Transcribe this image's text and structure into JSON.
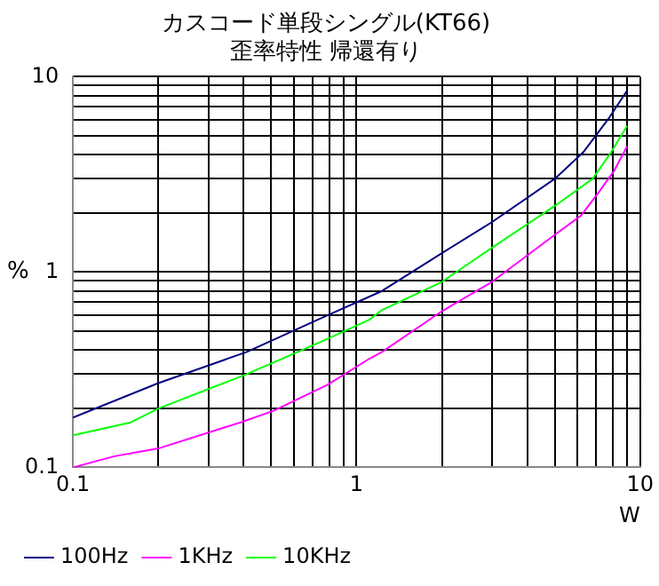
{
  "chart_data": {
    "type": "line",
    "title": "カスコード単段シングル(KT66)\n歪率特性 帰還有り",
    "xlabel": "W",
    "ylabel": "%",
    "log": "xy",
    "grid": true,
    "legend": "bottom",
    "marker": "none",
    "line_style": "solid",
    "xlim": [
      0.1,
      10
    ],
    "ylim": [
      0.1,
      10
    ],
    "xticks": [
      0.1,
      {
        "value": 0.2,
        "label": null
      },
      {
        "value": 0.3,
        "label": null
      },
      {
        "value": 0.4,
        "label": null
      },
      {
        "value": 0.5,
        "label": null
      },
      {
        "value": 0.6,
        "label": null
      },
      {
        "value": 0.7,
        "label": null
      },
      {
        "value": 0.8,
        "label": null
      },
      {
        "value": 0.9,
        "label": null
      },
      1,
      {
        "value": 2,
        "label": null
      },
      {
        "value": 3,
        "label": null
      },
      {
        "value": 4,
        "label": null
      },
      {
        "value": 5,
        "label": null
      },
      {
        "value": 6,
        "label": null
      },
      {
        "value": 7,
        "label": null
      },
      {
        "value": 8,
        "label": null
      },
      {
        "value": 9,
        "label": null
      },
      10
    ],
    "yticks": [
      0.1,
      {
        "value": 0.2,
        "label": null
      },
      {
        "value": 0.3,
        "label": null
      },
      {
        "value": 0.4,
        "label": null
      },
      {
        "value": 0.5,
        "label": null
      },
      {
        "value": 0.6,
        "label": null
      },
      {
        "value": 0.7,
        "label": null
      },
      {
        "value": 0.8,
        "label": null
      },
      {
        "value": 0.9,
        "label": null
      },
      1,
      {
        "value": 2,
        "label": null
      },
      {
        "value": 3,
        "label": null
      },
      {
        "value": 4,
        "label": null
      },
      {
        "value": 5,
        "label": null
      },
      {
        "value": 6,
        "label": null
      },
      {
        "value": 7,
        "label": null
      },
      {
        "value": 8,
        "label": null
      },
      {
        "value": 9,
        "label": null
      },
      10
    ],
    "series": [
      {
        "name": "100Hz",
        "color": "#000080",
        "x": [
          0.1,
          0.2,
          0.41,
          0.79,
          1.23,
          2.0,
          3.0,
          5.0,
          6.3,
          7.8,
          9.0
        ],
        "values": [
          0.18,
          0.27,
          0.39,
          0.6,
          0.8,
          1.25,
          1.8,
          3.0,
          4.1,
          6.2,
          8.5
        ]
      },
      {
        "name": "1KHz",
        "color": "#ff00ff",
        "x": [
          0.1,
          0.14,
          0.2,
          0.39,
          0.51,
          0.79,
          1.11,
          1.23,
          2.0,
          3.0,
          5.0,
          6.2,
          7.2,
          8.1,
          9.0
        ],
        "values": [
          0.1,
          0.114,
          0.125,
          0.17,
          0.195,
          0.265,
          0.36,
          0.39,
          0.63,
          0.89,
          1.55,
          1.95,
          2.6,
          3.3,
          4.4
        ]
      },
      {
        "name": "10KHz",
        "color": "#00ff00",
        "x": [
          0.1,
          0.16,
          0.2,
          0.41,
          0.75,
          1.11,
          1.23,
          2.0,
          3.0,
          5.0,
          6.8,
          7.9,
          9.0
        ],
        "values": [
          0.146,
          0.17,
          0.2,
          0.3,
          0.44,
          0.57,
          0.64,
          0.89,
          1.33,
          2.18,
          3.0,
          4.1,
          5.6
        ]
      }
    ]
  }
}
